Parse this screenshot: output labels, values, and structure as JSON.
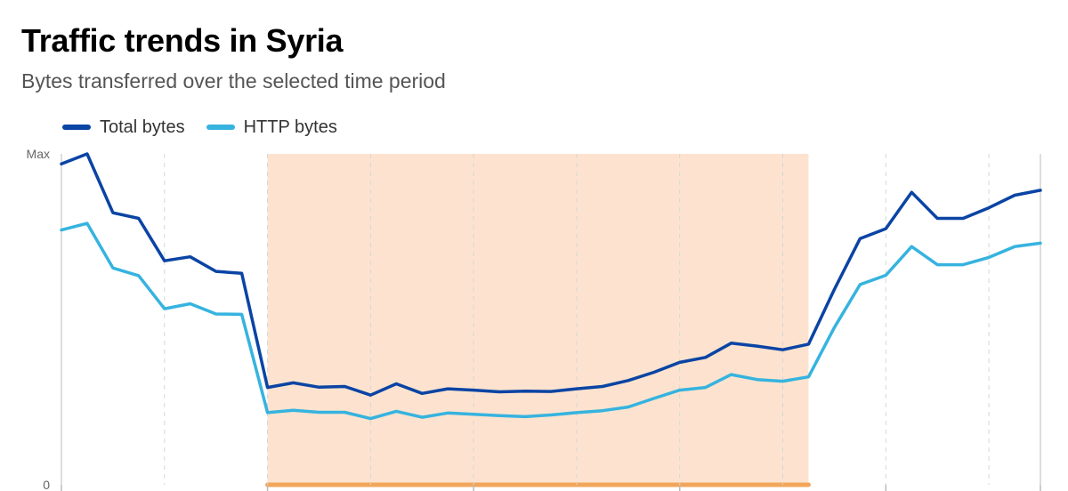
{
  "header": {
    "title": "Traffic trends in Syria",
    "subtitle": "Bytes transferred over the selected time period"
  },
  "colors": {
    "total_bytes": "#0a44a4",
    "http_bytes": "#36b3df",
    "outage_fill": "#fde3cf",
    "outage_bar": "#f2a65a",
    "grid": "#d6d6d6",
    "axis": "#bbbbbb"
  },
  "chart_data": {
    "type": "line",
    "title": "Traffic trends in Syria",
    "subtitle": "Bytes transferred over the selected time period",
    "xlabel": "",
    "ylabel": "",
    "y_tick_labels": [
      "0",
      "Max"
    ],
    "ylim": [
      0,
      1
    ],
    "legend_position": "top-left",
    "grid": "vertical dashed lines",
    "x": [
      0,
      1,
      2,
      3,
      4,
      5,
      6,
      7,
      8,
      9,
      10,
      11,
      12,
      13,
      14,
      15,
      16,
      17,
      18,
      19,
      20,
      21,
      22,
      23,
      24,
      25,
      26,
      27,
      28,
      29,
      30,
      31,
      32,
      33,
      34,
      35,
      36,
      37,
      38
    ],
    "series": [
      {
        "name": "Total bytes",
        "values": [
          0.97,
          1.0,
          0.822,
          0.805,
          0.677,
          0.689,
          0.645,
          0.639,
          0.294,
          0.308,
          0.295,
          0.297,
          0.271,
          0.305,
          0.276,
          0.29,
          0.286,
          0.281,
          0.283,
          0.282,
          0.29,
          0.297,
          0.315,
          0.34,
          0.37,
          0.385,
          0.428,
          0.419,
          0.408,
          0.425,
          0.59,
          0.744,
          0.774,
          0.884,
          0.805,
          0.805,
          0.837,
          0.875,
          0.89
        ]
      },
      {
        "name": "HTTP bytes",
        "values": [
          0.77,
          0.79,
          0.655,
          0.632,
          0.532,
          0.547,
          0.516,
          0.515,
          0.218,
          0.225,
          0.219,
          0.219,
          0.2,
          0.222,
          0.204,
          0.217,
          0.213,
          0.209,
          0.206,
          0.211,
          0.218,
          0.224,
          0.235,
          0.261,
          0.286,
          0.294,
          0.333,
          0.318,
          0.313,
          0.326,
          0.475,
          0.605,
          0.633,
          0.72,
          0.665,
          0.665,
          0.687,
          0.72,
          0.73
        ]
      }
    ],
    "highlight_range": [
      8,
      29
    ]
  }
}
